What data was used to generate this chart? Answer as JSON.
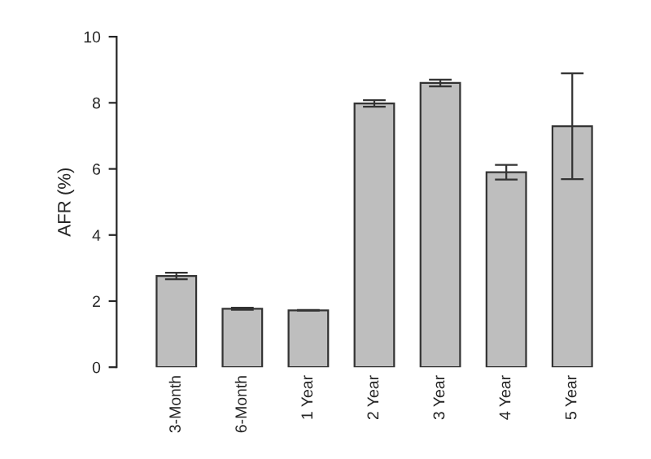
{
  "chart_data": {
    "type": "bar",
    "ylabel": "AFR (%)",
    "categories": [
      "3-Month",
      "6-Month",
      "1 Year",
      "2 Year",
      "3 Year",
      "4 Year",
      "5 Year"
    ],
    "values": [
      2.76,
      1.77,
      1.72,
      7.98,
      8.6,
      5.9,
      7.29
    ],
    "errors": [
      0.1,
      0.03,
      0.01,
      0.1,
      0.1,
      0.22,
      1.6
    ],
    "color": "#bebebe",
    "ylim": [
      0,
      10
    ],
    "yticks": [
      0,
      2,
      4,
      6,
      8,
      10
    ],
    "grid": false
  }
}
